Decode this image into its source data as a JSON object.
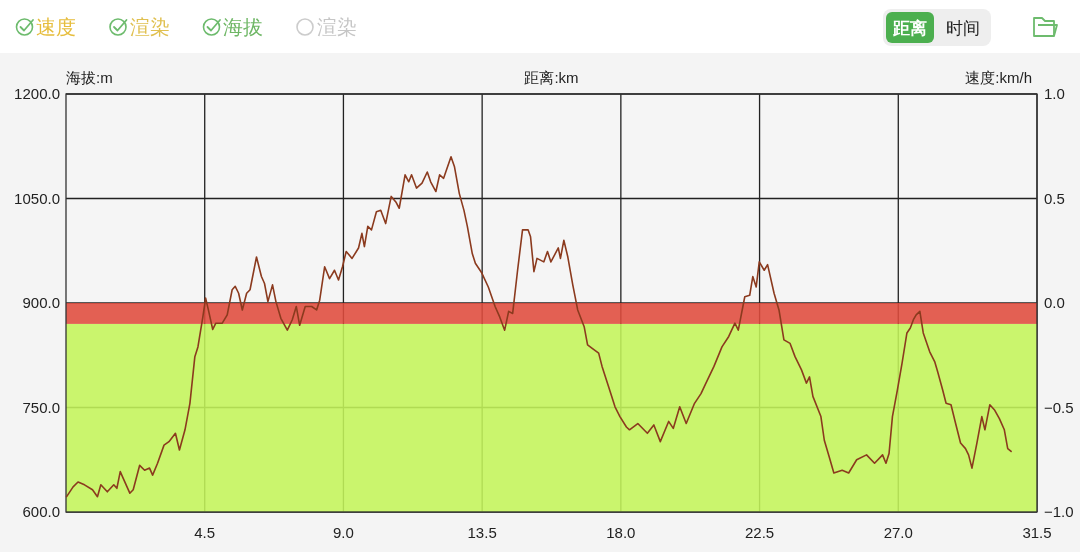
{
  "chart_data": {
    "type": "line",
    "xlabel": "距离:km",
    "ylabel": "海拔:m",
    "y2label": "速度:km/h",
    "x": [
      0.02,
      0.23,
      0.39,
      0.6,
      0.86,
      1.02,
      1.13,
      1.34,
      1.55,
      1.65,
      1.76,
      1.86,
      2.07,
      2.18,
      2.39,
      2.55,
      2.71,
      2.81,
      2.97,
      3.18,
      3.34,
      3.55,
      3.68,
      3.86,
      4.02,
      4.18,
      4.28,
      4.44,
      4.53,
      4.63,
      4.76,
      4.86,
      5.07,
      5.23,
      5.39,
      5.49,
      5.6,
      5.72,
      5.86,
      5.97,
      6.18,
      6.34,
      6.44,
      6.55,
      6.7,
      6.81,
      6.97,
      7.18,
      7.34,
      7.47,
      7.58,
      7.76,
      7.97,
      8.13,
      8.23,
      8.39,
      8.55,
      8.71,
      8.84,
      8.97,
      9.09,
      9.28,
      9.49,
      9.6,
      9.68,
      9.79,
      9.91,
      10.07,
      10.21,
      10.37,
      10.55,
      10.7,
      10.81,
      11.0,
      11.12,
      11.21,
      11.37,
      11.55,
      11.72,
      11.83,
      12.0,
      12.12,
      12.25,
      12.49,
      12.6,
      12.76,
      12.91,
      13.02,
      13.18,
      13.28,
      13.49,
      13.7,
      13.92,
      14.07,
      14.23,
      14.36,
      14.49,
      14.65,
      14.81,
      14.99,
      15.07,
      15.18,
      15.28,
      15.5,
      15.62,
      15.73,
      15.97,
      16.04,
      16.15,
      16.28,
      16.44,
      16.6,
      16.81,
      16.92,
      17.07,
      17.28,
      17.39,
      17.6,
      17.81,
      17.97,
      18.18,
      18.28,
      18.55,
      18.86,
      19.07,
      19.28,
      19.55,
      19.7,
      19.91,
      20.12,
      20.39,
      20.6,
      20.76,
      21.02,
      21.28,
      21.5,
      21.7,
      21.81,
      22.02,
      22.18,
      22.28,
      22.39,
      22.49,
      22.65,
      22.76,
      22.97,
      23.13,
      23.29,
      23.49,
      23.65,
      23.86,
      24.02,
      24.12,
      24.23,
      24.49,
      24.6,
      24.76,
      24.91,
      25.18,
      25.39,
      25.65,
      25.97,
      26.23,
      26.49,
      26.6,
      26.7,
      26.81,
      26.97,
      27.12,
      27.28,
      27.39,
      27.49,
      27.58,
      27.7,
      27.81,
      28.02,
      28.18,
      28.28,
      28.44,
      28.55,
      28.71,
      28.86,
      29.02,
      29.18,
      29.28,
      29.39,
      29.55,
      29.71,
      29.81,
      29.97,
      30.13,
      30.28,
      30.44,
      30.55,
      30.66
    ],
    "series": [
      {
        "color": "#8b3a1e",
        "values": [
          622,
          636,
          643,
          639,
          632,
          622,
          639,
          629,
          639,
          634,
          658,
          648,
          627,
          632,
          667,
          660,
          663,
          653,
          670,
          696,
          701,
          713,
          689,
          718,
          756,
          823,
          837,
          880,
          907,
          888,
          862,
          871,
          871,
          883,
          919,
          924,
          914,
          890,
          914,
          919,
          966,
          938,
          928,
          902,
          926,
          902,
          878,
          861,
          876,
          895,
          868,
          895,
          895,
          890,
          904,
          952,
          935,
          947,
          933,
          952,
          974,
          964,
          979,
          1000,
          981,
          1010,
          1005,
          1031,
          1033,
          1014,
          1053,
          1045,
          1036,
          1084,
          1074,
          1084,
          1065,
          1072,
          1088,
          1074,
          1060,
          1084,
          1079,
          1110,
          1096,
          1057,
          1033,
          1010,
          971,
          957,
          943,
          923,
          895,
          880,
          861,
          888,
          885,
          947,
          1005,
          1005,
          995,
          945,
          964,
          959,
          974,
          959,
          979,
          964,
          990,
          966,
          926,
          890,
          866,
          840,
          835,
          828,
          809,
          780,
          751,
          737,
          722,
          718,
          727,
          713,
          725,
          701,
          730,
          720,
          751,
          727,
          756,
          770,
          785,
          809,
          837,
          852,
          871,
          861,
          909,
          911,
          938,
          923,
          959,
          947,
          955,
          914,
          890,
          847,
          842,
          823,
          804,
          785,
          794,
          766,
          737,
          703,
          679,
          656,
          660,
          656,
          675,
          682,
          670,
          682,
          670,
          684,
          737,
          775,
          813,
          857,
          864,
          876,
          883,
          888,
          857,
          830,
          816,
          801,
          775,
          756,
          754,
          727,
          699,
          691,
          682,
          663,
          699,
          737,
          718,
          754,
          746,
          734,
          718,
          691,
          687
        ]
      }
    ],
    "xlim": [
      0,
      31.5
    ],
    "xticks": [
      4.5,
      {
        "value": 9,
        "label": "9.0"
      },
      13.5,
      {
        "value": 18,
        "label": "18.0"
      },
      22.5,
      {
        "value": 27,
        "label": "27.0"
      },
      31.5
    ],
    "ylim": [
      600,
      1200
    ],
    "yticks": [
      {
        "value": 600,
        "label": "600.0"
      },
      {
        "value": 750,
        "label": "750.0"
      },
      {
        "value": 900,
        "label": "900.0"
      },
      {
        "value": 1050,
        "label": "1050.0"
      },
      {
        "value": 1200,
        "label": "1200.0"
      }
    ],
    "y2lim": [
      -1,
      1
    ],
    "y2ticks": [
      {
        "value": -1,
        "label": "−1.0"
      },
      {
        "value": -0.5,
        "label": "−0.5"
      },
      {
        "value": 0,
        "label": "0.0"
      },
      {
        "value": 0.5,
        "label": "0.5"
      },
      {
        "value": 1,
        "label": "1.0"
      }
    ],
    "bands": [
      {
        "axis": "y",
        "from": 600,
        "to": 870,
        "color": "#c4f55a"
      },
      {
        "axis": "y",
        "from": 870,
        "to": 900,
        "color": "#e04b3c"
      }
    ],
    "grid": true,
    "line_style": "solid",
    "annotations": [
      "速度",
      "渲染",
      "海拔",
      "渲染",
      "距离",
      "时间"
    ]
  }
}
